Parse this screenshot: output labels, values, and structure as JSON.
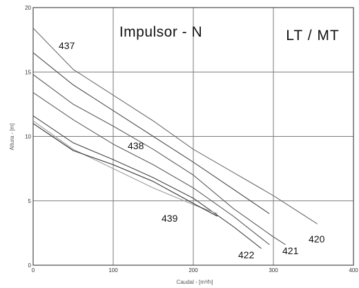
{
  "chart_data": {
    "type": "line",
    "xlabel": "Caudal - [m³/h]",
    "ylabel": "Altura - [m]",
    "xlim": [
      0,
      400
    ],
    "ylim": [
      0,
      20
    ],
    "xticks": [
      "0",
      "100",
      "200",
      "300",
      "400"
    ],
    "yticks": [
      "0",
      "5",
      "10",
      "15",
      "20"
    ],
    "grid": true,
    "annotations": [
      "Impulsor - N",
      "LT / MT"
    ],
    "series": [
      {
        "name": "437",
        "color": "#6a6a6a",
        "points": [
          [
            0,
            18.4
          ],
          [
            50,
            15.2
          ],
          [
            100,
            13.2
          ],
          [
            150,
            11.2
          ],
          [
            200,
            9.0
          ],
          [
            250,
            7.2
          ],
          [
            300,
            5.4
          ],
          [
            340,
            3.8
          ],
          [
            355,
            3.2
          ]
        ]
      },
      {
        "name": "420",
        "color": "#4a4a4a",
        "points": [
          [
            0,
            16.5
          ],
          [
            50,
            14.0
          ],
          [
            100,
            12.0
          ],
          [
            150,
            10.0
          ],
          [
            200,
            8.0
          ],
          [
            250,
            5.9
          ],
          [
            295,
            4.0
          ]
        ]
      },
      {
        "name": "421",
        "color": "#5a5a5a",
        "points": [
          [
            0,
            14.8
          ],
          [
            50,
            12.5
          ],
          [
            100,
            10.8
          ],
          [
            150,
            9.0
          ],
          [
            200,
            7.0
          ],
          [
            250,
            4.4
          ],
          [
            300,
            2.2
          ],
          [
            315,
            1.6
          ]
        ]
      },
      {
        "name": "438",
        "color": "#5a5a5a",
        "points": [
          [
            0,
            13.4
          ],
          [
            50,
            11.3
          ],
          [
            100,
            9.4
          ],
          [
            150,
            7.8
          ],
          [
            200,
            6.0
          ],
          [
            250,
            3.8
          ],
          [
            295,
            1.6
          ]
        ]
      },
      {
        "name": "422",
        "color": "#444444",
        "points": [
          [
            0,
            11.6
          ],
          [
            50,
            9.5
          ],
          [
            100,
            8.2
          ],
          [
            150,
            6.8
          ],
          [
            200,
            5.2
          ],
          [
            250,
            3.0
          ],
          [
            285,
            1.3
          ]
        ]
      },
      {
        "name": "439",
        "color": "#9a9a9a",
        "points": [
          [
            0,
            11.2
          ],
          [
            50,
            9.0
          ],
          [
            100,
            7.5
          ],
          [
            150,
            6.0
          ],
          [
            200,
            4.7
          ],
          [
            230,
            4.0
          ]
        ]
      },
      {
        "name": "",
        "color": "#2e2e2e",
        "points": [
          [
            0,
            11.0
          ],
          [
            50,
            8.9
          ],
          [
            100,
            7.8
          ],
          [
            150,
            6.5
          ],
          [
            200,
            4.8
          ],
          [
            230,
            3.8
          ]
        ]
      }
    ],
    "curve_labels": [
      "437",
      "438",
      "439",
      "420",
      "421",
      "422"
    ]
  }
}
